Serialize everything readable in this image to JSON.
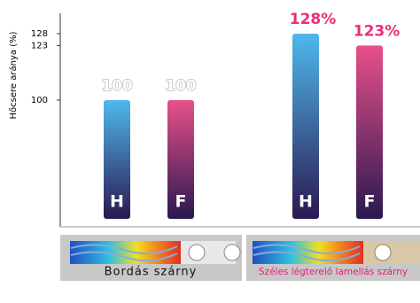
{
  "chart_data": {
    "type": "bar",
    "y_label": "Hőcsere aránya (%)",
    "categories": [
      "H",
      "F",
      "H",
      "F"
    ],
    "values": [
      100,
      100,
      128,
      123
    ],
    "value_labels": [
      "100",
      "100",
      "128%",
      "123%"
    ],
    "colors": [
      "#4fb8ec",
      "#e8508a",
      "#4fb8ec",
      "#e8508a"
    ],
    "label_colors": [
      "#9a9a9a",
      "#9a9a9a",
      "#e8307a",
      "#e8307a"
    ],
    "groups": [
      {
        "name": "Bordás szárny",
        "color": "#111111"
      },
      {
        "name": "Széles légterelő lamellás szárny",
        "color": "#e0207a"
      }
    ],
    "ylim": [
      50,
      130
    ],
    "yticks": [
      100,
      123,
      128
    ]
  }
}
